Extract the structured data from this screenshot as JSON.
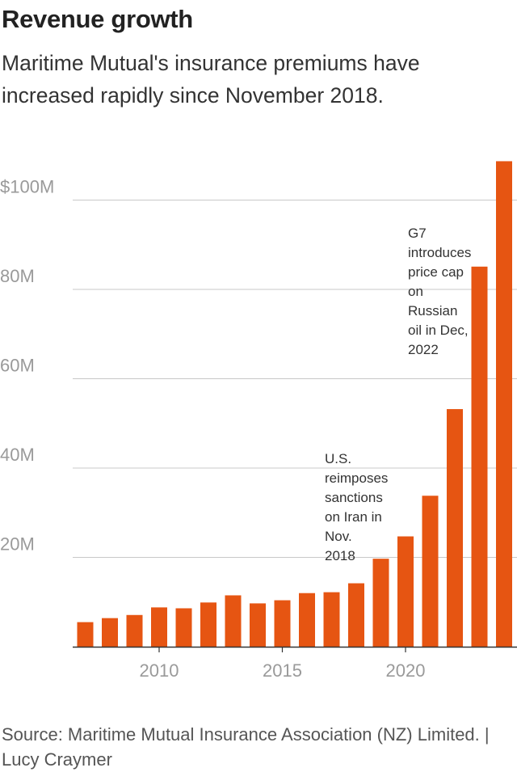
{
  "header": {
    "title": "Revenue growth",
    "subtitle": "Maritime Mutual's insurance premiums have increased rapidly since November 2018."
  },
  "footer": {
    "source": "Source: Maritime Mutual Insurance Association (NZ) Limited. | Lucy Craymer"
  },
  "chart_data": {
    "type": "bar",
    "x": [
      2007,
      2008,
      2009,
      2010,
      2011,
      2012,
      2013,
      2014,
      2015,
      2016,
      2017,
      2018,
      2019,
      2020,
      2021,
      2022,
      2023,
      2024
    ],
    "values": [
      5.5,
      6.4,
      7.1,
      8.8,
      8.6,
      9.9,
      11.5,
      9.7,
      10.4,
      12.0,
      12.2,
      14.2,
      19.7,
      24.7,
      33.8,
      53.2,
      85.1,
      108.7
    ],
    "ylim": [
      0,
      110
    ],
    "yticks": [
      20,
      40,
      60,
      80,
      100
    ],
    "ytick_labels": [
      "20M",
      "40M",
      "60M",
      "80M",
      "$100M"
    ],
    "xticks": [
      2010,
      2015,
      2020
    ],
    "xtick_labels": [
      "2010",
      "2015",
      "2020"
    ],
    "xlabel": "",
    "ylabel": "",
    "grid": true,
    "colors": {
      "bar": "#e65512",
      "grid": "#c8c8c8",
      "axis": "#333333",
      "tick_text": "#9a9a9a",
      "annotation_text": "#333333"
    },
    "annotations": [
      {
        "x": 2018,
        "lines": [
          "U.S.",
          "reimposes",
          "sanctions",
          "on Iran in",
          "Nov.",
          "2018"
        ]
      },
      {
        "x": 2022,
        "lines": [
          "G7",
          "introduces",
          "price cap",
          "on",
          "Russian",
          "oil in Dec,",
          "2022"
        ]
      }
    ]
  }
}
